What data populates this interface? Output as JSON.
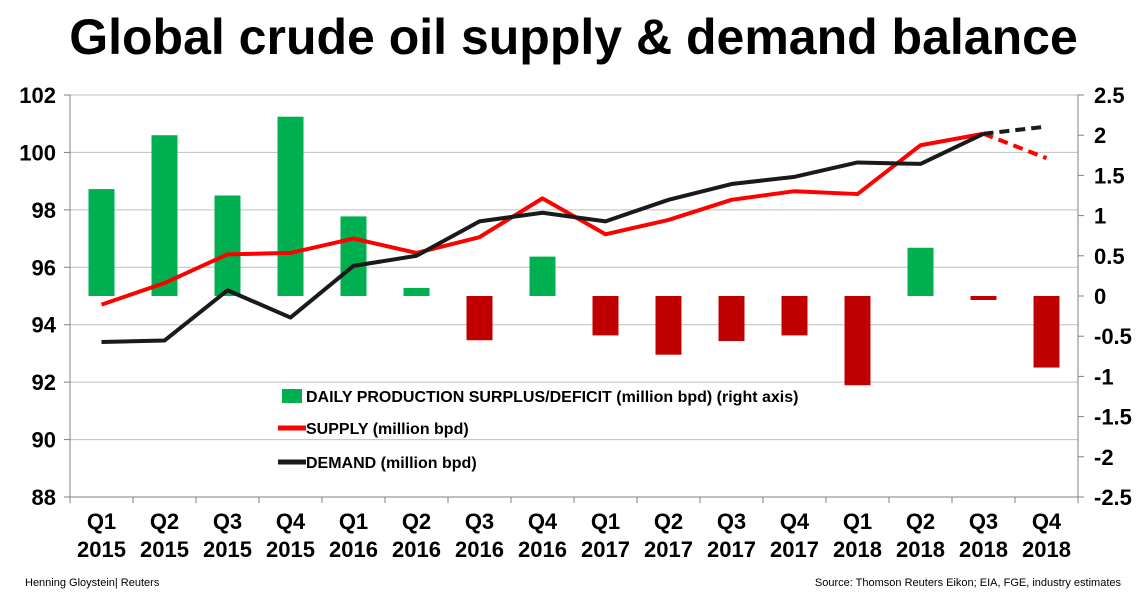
{
  "title": "Global crude oil supply & demand balance",
  "footer": {
    "credit": "Henning Gloystein| Reuters",
    "source": "Source: Thomson Reuters Eikon; EIA, FGE, industry estimates"
  },
  "colors": {
    "surplus": "#00b050",
    "deficit": "#c00000",
    "supply": "#ff0000",
    "demand": "#1a1a1a",
    "grid": "#bfbfbf"
  },
  "chart_data": {
    "type": "bar+line",
    "categories": [
      [
        "Q1",
        "2015"
      ],
      [
        "Q2",
        "2015"
      ],
      [
        "Q3",
        "2015"
      ],
      [
        "Q4",
        "2015"
      ],
      [
        "Q1",
        "2016"
      ],
      [
        "Q2",
        "2016"
      ],
      [
        "Q3",
        "2016"
      ],
      [
        "Q4",
        "2016"
      ],
      [
        "Q1",
        "2017"
      ],
      [
        "Q2",
        "2017"
      ],
      [
        "Q3",
        "2017"
      ],
      [
        "Q4",
        "2017"
      ],
      [
        "Q1",
        "2018"
      ],
      [
        "Q2",
        "2018"
      ],
      [
        "Q3",
        "2018"
      ],
      [
        "Q4",
        "2018"
      ]
    ],
    "y_left": {
      "min": 88,
      "max": 102,
      "step": 2
    },
    "y_right": {
      "min": -2.5,
      "max": 2.5,
      "step": 0.5
    },
    "right_tick_labels": [
      "2.5",
      "2",
      "1.5",
      "1",
      "0.5",
      "0",
      "-0.5",
      "-1",
      "-1.5",
      "-2",
      "-2.5"
    ],
    "grid": true,
    "series": [
      {
        "name": "DAILY PRODUCTION SURPLUS/DEFICIT (million bpd) (right axis)",
        "type": "bar",
        "axis": "right",
        "values": [
          1.33,
          2.0,
          1.25,
          2.23,
          0.99,
          0.1,
          -0.55,
          0.49,
          -0.49,
          -0.73,
          -0.56,
          -0.49,
          -1.11,
          0.6,
          -0.05,
          -0.89
        ]
      },
      {
        "name": "SUPPLY (million bpd)",
        "type": "line",
        "axis": "left",
        "dashed_from_index": 14,
        "values": [
          94.7,
          95.45,
          96.45,
          96.5,
          97.0,
          96.5,
          97.05,
          98.4,
          97.15,
          97.65,
          98.35,
          98.65,
          98.55,
          100.25,
          100.65,
          99.8
        ]
      },
      {
        "name": "DEMAND  (million bpd)",
        "type": "line",
        "axis": "left",
        "dashed_from_index": 14,
        "values": [
          93.4,
          93.45,
          95.2,
          94.25,
          96.05,
          96.4,
          97.6,
          97.9,
          97.6,
          98.35,
          98.9,
          99.15,
          99.65,
          99.6,
          100.65,
          100.9
        ]
      }
    ],
    "legend_placement": "lower-center inside plot"
  }
}
